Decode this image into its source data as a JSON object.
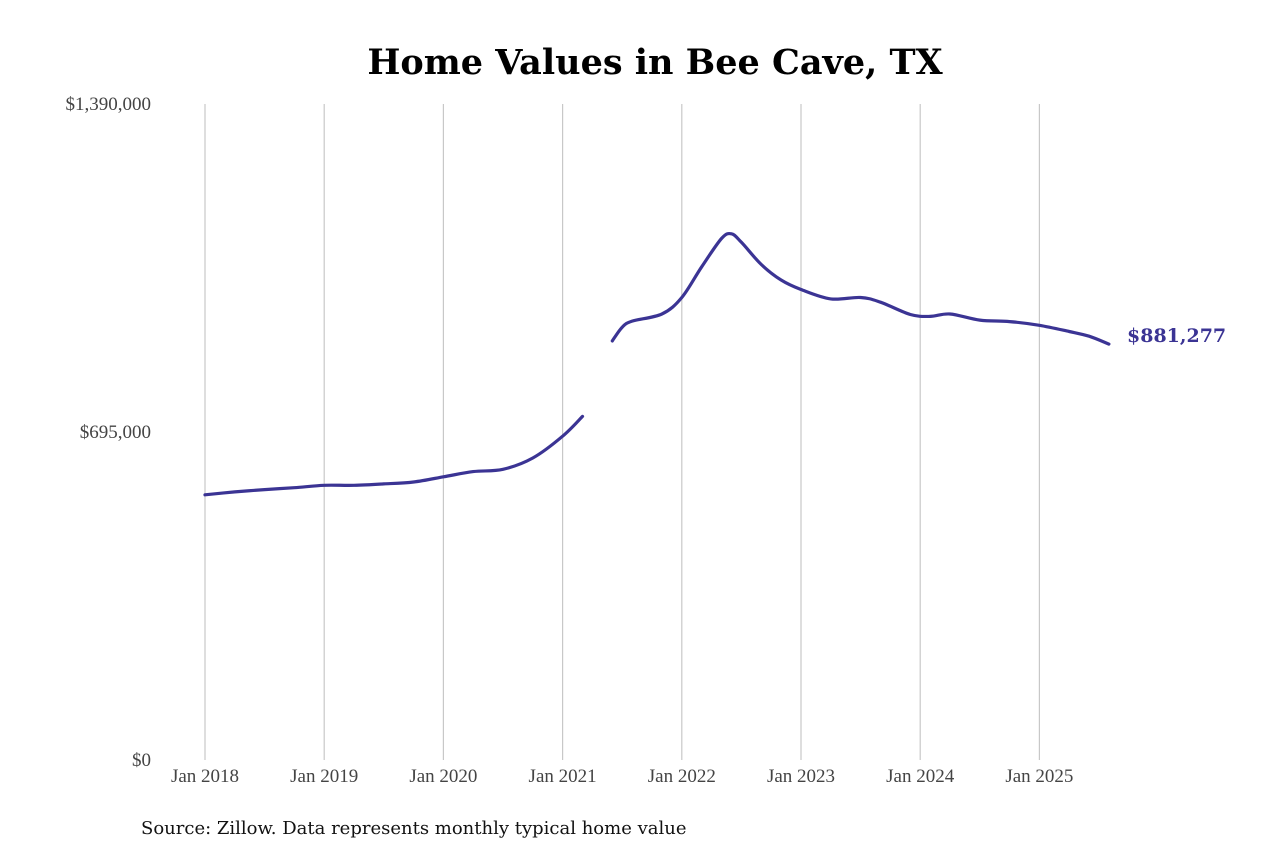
{
  "chart_data": {
    "type": "line",
    "title": "Home Values in Bee Cave, TX",
    "xlabel": "",
    "ylabel": "",
    "source": "Source: Zillow. Data represents monthly typical home value",
    "y_ticks": [
      {
        "value": 1390000,
        "label": "$1,390,000"
      },
      {
        "value": 695000,
        "label": "$695,000"
      },
      {
        "value": 0,
        "label": "$0"
      }
    ],
    "x_ticks": [
      {
        "value": "2018-01",
        "label": "Jan 2018"
      },
      {
        "value": "2019-01",
        "label": "Jan 2019"
      },
      {
        "value": "2020-01",
        "label": "Jan 2020"
      },
      {
        "value": "2021-01",
        "label": "Jan 2021"
      },
      {
        "value": "2022-01",
        "label": "Jan 2022"
      },
      {
        "value": "2023-01",
        "label": "Jan 2023"
      },
      {
        "value": "2024-01",
        "label": "Jan 2024"
      },
      {
        "value": "2025-01",
        "label": "Jan 2025"
      }
    ],
    "xlim": [
      "2018-01",
      "2025-08"
    ],
    "ylim": [
      0,
      1390000
    ],
    "grid": "vertical",
    "line_color": "#3b3494",
    "end_label": "$881,277",
    "series": [
      {
        "segments": [
          [
            [
              "2018-01",
              562000
            ],
            [
              "2018-04",
              568000
            ],
            [
              "2018-07",
              573000
            ],
            [
              "2018-10",
              577000
            ],
            [
              "2019-01",
              582000
            ],
            [
              "2019-04",
              582000
            ],
            [
              "2019-07",
              585000
            ],
            [
              "2019-10",
              589000
            ],
            [
              "2020-01",
              600000
            ],
            [
              "2020-04",
              611000
            ],
            [
              "2020-07",
              616000
            ],
            [
              "2020-10",
              640000
            ],
            [
              "2021-01",
              686000
            ],
            [
              "2021-03",
              728000
            ]
          ],
          [
            [
              "2021-06",
              888000
            ],
            [
              "2021-07",
              917000
            ],
            [
              "2021-08",
              930000
            ],
            [
              "2021-11",
              945000
            ],
            [
              "2022-01",
              980000
            ],
            [
              "2022-03",
              1045000
            ],
            [
              "2022-05",
              1105000
            ],
            [
              "2022-06",
              1115000
            ],
            [
              "2022-07",
              1097000
            ],
            [
              "2022-09",
              1050000
            ],
            [
              "2022-11",
              1017000
            ],
            [
              "2023-01",
              997000
            ],
            [
              "2023-04",
              977000
            ],
            [
              "2023-07",
              980000
            ],
            [
              "2023-09",
              970000
            ],
            [
              "2023-12",
              944000
            ],
            [
              "2024-02",
              940000
            ],
            [
              "2024-04",
              945000
            ],
            [
              "2024-07",
              932000
            ],
            [
              "2024-10",
              929000
            ],
            [
              "2025-01",
              921000
            ],
            [
              "2025-04",
              908000
            ],
            [
              "2025-06",
              898000
            ],
            [
              "2025-08",
              881277
            ]
          ]
        ]
      }
    ]
  }
}
